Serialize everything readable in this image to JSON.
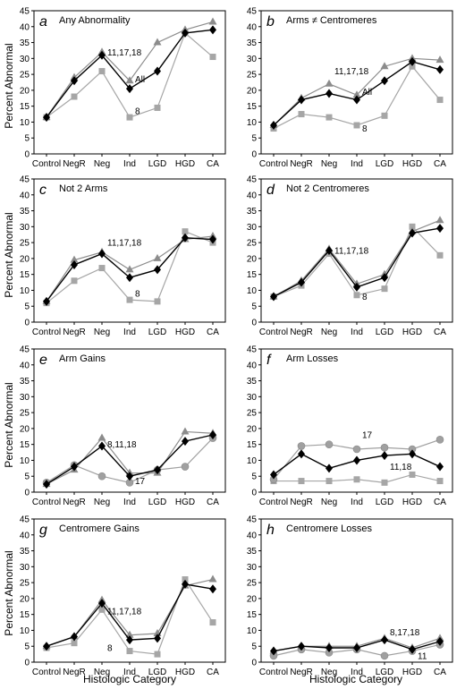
{
  "figure": {
    "ylabel": "Percent Abnormal",
    "xlabel": "Histologic Category"
  },
  "colors": {
    "all": "#000000",
    "trisomy_11_17_18": "#8c8c8c",
    "chr8": "#a6a6a6",
    "circle_series": "#a0a0a0",
    "axis": "#000000"
  },
  "chart_data": [
    {
      "type": "line",
      "panel_letter": "a",
      "title": "Any Abnormality",
      "categories": [
        "Control",
        "NegR",
        "Neg",
        "Ind",
        "LGD",
        "HGD",
        "CA"
      ],
      "ylim": [
        0,
        45
      ],
      "yticks": [
        0,
        5,
        10,
        15,
        20,
        25,
        30,
        35,
        40,
        45
      ],
      "series": [
        {
          "name": "All",
          "marker": "diamond",
          "values": [
            11.5,
            23,
            31,
            20.5,
            26,
            38,
            39
          ]
        },
        {
          "name": "11,17,18",
          "marker": "triangle",
          "values": [
            11.5,
            24,
            32,
            23,
            35,
            39,
            41.5
          ]
        },
        {
          "name": "8",
          "marker": "square",
          "values": [
            11.5,
            18,
            26,
            11.5,
            14.5,
            38,
            30.5
          ]
        }
      ],
      "annotations": [
        {
          "text": "11,17,18",
          "x": "Neg",
          "y": 31
        },
        {
          "text": "All",
          "x": "Ind",
          "y": 22.5
        },
        {
          "text": "8",
          "x": "Ind",
          "y": 12.5
        }
      ]
    },
    {
      "type": "line",
      "panel_letter": "b",
      "title": "Arms ≠ Centromeres",
      "categories": [
        "Control",
        "NegR",
        "Neg",
        "Ind",
        "LGD",
        "HGD",
        "CA"
      ],
      "ylim": [
        0,
        45
      ],
      "yticks": [
        0,
        5,
        10,
        15,
        20,
        25,
        30,
        35,
        40,
        45
      ],
      "series": [
        {
          "name": "All",
          "marker": "diamond",
          "values": [
            9,
            17,
            19,
            17,
            23,
            29,
            26.5
          ]
        },
        {
          "name": "11,17,18",
          "marker": "triangle",
          "values": [
            9,
            17.5,
            22,
            18.5,
            27.5,
            30,
            29.5
          ]
        },
        {
          "name": "8",
          "marker": "square",
          "values": [
            8,
            12.5,
            11.5,
            9,
            12,
            27.5,
            17
          ]
        }
      ],
      "annotations": [
        {
          "text": "11,17,18",
          "x": "Neg",
          "y": 25
        },
        {
          "text": "All",
          "x": "Ind",
          "y": 18.5
        },
        {
          "text": "8",
          "x": "Ind",
          "y": 7
        }
      ]
    },
    {
      "type": "line",
      "panel_letter": "c",
      "title": "Not 2 Arms",
      "categories": [
        "Control",
        "NegR",
        "Neg",
        "Ind",
        "LGD",
        "HGD",
        "CA"
      ],
      "ylim": [
        0,
        45
      ],
      "yticks": [
        0,
        5,
        10,
        15,
        20,
        25,
        30,
        35,
        40,
        45
      ],
      "series": [
        {
          "name": "All",
          "marker": "diamond",
          "values": [
            6.5,
            18,
            21.5,
            14,
            16.5,
            26.5,
            26
          ]
        },
        {
          "name": "11,17,18",
          "marker": "triangle",
          "values": [
            6.5,
            19.5,
            22,
            16.5,
            20,
            26,
            27
          ]
        },
        {
          "name": "8",
          "marker": "square",
          "values": [
            6,
            13,
            17,
            7,
            6.5,
            28.5,
            25
          ]
        }
      ],
      "annotations": [
        {
          "text": "11,17,18",
          "x": "Neg",
          "y": 24
        },
        {
          "text": "8",
          "x": "Ind",
          "y": 8
        }
      ]
    },
    {
      "type": "line",
      "panel_letter": "d",
      "title": "Not 2 Centromeres",
      "categories": [
        "Control",
        "NegR",
        "Neg",
        "Ind",
        "LGD",
        "HGD",
        "CA"
      ],
      "ylim": [
        0,
        45
      ],
      "yticks": [
        0,
        5,
        10,
        15,
        20,
        25,
        30,
        35,
        40,
        45
      ],
      "series": [
        {
          "name": "All",
          "marker": "diamond",
          "values": [
            8,
            12.5,
            22.5,
            11,
            14,
            28,
            29.5
          ]
        },
        {
          "name": "11,17,18",
          "marker": "triangle",
          "values": [
            8,
            13,
            23,
            12,
            15,
            28.5,
            32
          ]
        },
        {
          "name": "8",
          "marker": "square",
          "values": [
            8,
            11.5,
            21.5,
            8.5,
            10.5,
            30,
            21
          ]
        }
      ],
      "annotations": [
        {
          "text": "11,17,18",
          "x": "Neg",
          "y": 21.5
        },
        {
          "text": "8",
          "x": "Ind",
          "y": 7
        }
      ]
    },
    {
      "type": "line",
      "panel_letter": "e",
      "title": "Arm Gains",
      "categories": [
        "Control",
        "NegR",
        "Neg",
        "Ind",
        "LGD",
        "HGD",
        "CA"
      ],
      "ylim": [
        0,
        45
      ],
      "yticks": [
        0,
        5,
        10,
        15,
        20,
        25,
        30,
        35,
        40,
        45
      ],
      "series": [
        {
          "name": "All",
          "marker": "diamond",
          "values": [
            2.5,
            8,
            14.5,
            5,
            7,
            16,
            18
          ]
        },
        {
          "name": "11,17,18",
          "marker": "triangle",
          "values": [
            2.5,
            7,
            17,
            6,
            6,
            19,
            18.5
          ]
        },
        {
          "name": "8",
          "marker": "circle",
          "values": [
            3,
            8.5,
            5,
            3,
            7,
            8,
            17
          ]
        }
      ],
      "annotations": [
        {
          "text": "8,11,18",
          "x": "Neg",
          "y": 14
        },
        {
          "text": "17",
          "x": "Ind",
          "y": 2.5
        }
      ]
    },
    {
      "type": "line",
      "panel_letter": "f",
      "title": "Arm Losses",
      "categories": [
        "Control",
        "NegR",
        "Neg",
        "Ind",
        "LGD",
        "HGD",
        "CA"
      ],
      "ylim": [
        0,
        45
      ],
      "yticks": [
        0,
        5,
        10,
        15,
        20,
        25,
        30,
        35,
        40,
        45
      ],
      "series": [
        {
          "name": "11,18",
          "marker": "diamond",
          "values": [
            5.5,
            12,
            7.5,
            10,
            11.5,
            12,
            8
          ]
        },
        {
          "name": "17",
          "marker": "circle",
          "values": [
            4,
            14.5,
            15,
            13.5,
            14,
            13.5,
            16.5
          ]
        },
        {
          "name": "",
          "marker": "square",
          "values": [
            3.5,
            3.5,
            3.5,
            4,
            3,
            5.5,
            3.5
          ]
        }
      ],
      "annotations": [
        {
          "text": "17",
          "x": "Ind",
          "y": 17
        },
        {
          "text": "11,18",
          "x": "LGD",
          "y": 7
        }
      ]
    },
    {
      "type": "line",
      "panel_letter": "g",
      "title": "Centromere Gains",
      "categories": [
        "Control",
        "NegR",
        "Neg",
        "Ind",
        "LGD",
        "HGD",
        "CA"
      ],
      "ylim": [
        0,
        45
      ],
      "yticks": [
        0,
        5,
        10,
        15,
        20,
        25,
        30,
        35,
        40,
        45
      ],
      "series": [
        {
          "name": "All",
          "marker": "diamond",
          "values": [
            5,
            8,
            18.5,
            7,
            7.5,
            24.5,
            23
          ]
        },
        {
          "name": "11,17,18",
          "marker": "triangle",
          "values": [
            5,
            8,
            19.5,
            8.5,
            9,
            24,
            26
          ]
        },
        {
          "name": "8",
          "marker": "square",
          "values": [
            4.5,
            6,
            16.5,
            3.5,
            2.5,
            26,
            12.5
          ]
        }
      ],
      "annotations": [
        {
          "text": "11,17,18",
          "x": "Neg",
          "y": 15
        },
        {
          "text": "8",
          "x": "Neg",
          "y": 3.5
        }
      ]
    },
    {
      "type": "line",
      "panel_letter": "h",
      "title": "Centromere Losses",
      "categories": [
        "Control",
        "NegR",
        "Neg",
        "Ind",
        "LGD",
        "HGD",
        "CA"
      ],
      "ylim": [
        0,
        45
      ],
      "yticks": [
        0,
        5,
        10,
        15,
        20,
        25,
        30,
        35,
        40,
        45
      ],
      "series": [
        {
          "name": "All",
          "marker": "diamond",
          "values": [
            3.5,
            5,
            4.5,
            4.5,
            7,
            4,
            6.5
          ]
        },
        {
          "name": "8,17,18",
          "marker": "triangle",
          "values": [
            3.5,
            5,
            5,
            5,
            7.5,
            4.5,
            7.5
          ]
        },
        {
          "name": "11",
          "marker": "circle",
          "values": [
            2,
            4,
            3,
            4,
            2,
            3.5,
            5.5
          ]
        }
      ],
      "annotations": [
        {
          "text": "8,17,18",
          "x": "LGD",
          "y": 8.5
        },
        {
          "text": "11",
          "x": "HGD",
          "y": 1
        }
      ]
    }
  ]
}
